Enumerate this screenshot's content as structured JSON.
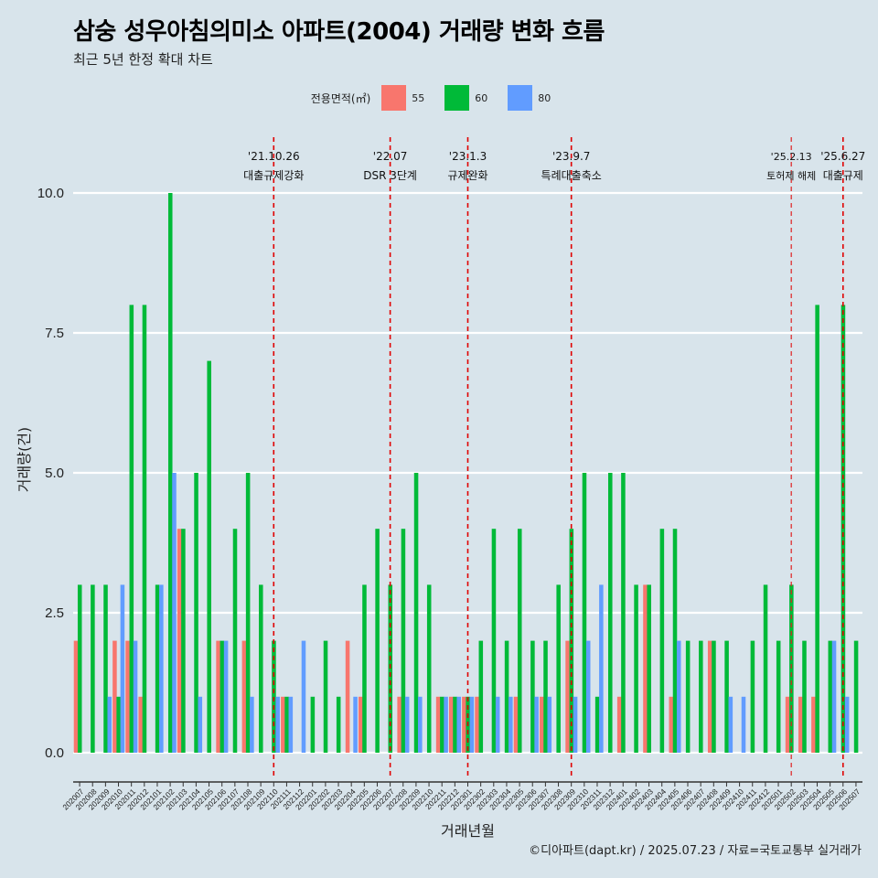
{
  "title": "삼숭 성우아침의미소 아파트(2004) 거래량 변화 흐름",
  "subtitle": "최근 5년 한정 확대 차트",
  "caption": "©디아파트(dapt.kr) / 2025.07.23 / 자료=국토교통부 실거래가",
  "chart_data": {
    "type": "bar",
    "xlabel": "거래년월",
    "ylabel": "거래량(건)",
    "ylim": [
      0,
      10
    ],
    "yticks": [
      "0.0",
      "2.5",
      "5.0",
      "7.5",
      "10.0"
    ],
    "grid": true,
    "legend": {
      "title": "전용면적(㎡)",
      "position": "top"
    },
    "categories": [
      "202007",
      "202008",
      "202009",
      "202010",
      "202011",
      "202012",
      "202101",
      "202102",
      "202103",
      "202104",
      "202105",
      "202106",
      "202107",
      "202108",
      "202109",
      "202110",
      "202111",
      "202112",
      "202201",
      "202202",
      "202203",
      "202204",
      "202205",
      "202206",
      "202207",
      "202208",
      "202209",
      "202210",
      "202211",
      "202212",
      "202301",
      "202302",
      "202303",
      "202304",
      "202305",
      "202306",
      "202307",
      "202308",
      "202309",
      "202310",
      "202311",
      "202312",
      "202401",
      "202402",
      "202403",
      "202404",
      "202405",
      "202406",
      "202407",
      "202408",
      "202409",
      "202410",
      "202411",
      "202412",
      "202501",
      "202502",
      "202503",
      "202504",
      "202505",
      "202506",
      "202507"
    ],
    "series": [
      {
        "name": "55",
        "color": "#f8766d",
        "values": [
          2,
          0,
          0,
          2,
          2,
          1,
          0,
          0,
          4,
          0,
          0,
          2,
          0,
          2,
          0,
          0,
          1,
          0,
          0,
          0,
          0,
          2,
          1,
          0,
          0,
          1,
          0,
          0,
          1,
          1,
          1,
          1,
          0,
          0,
          1,
          0,
          1,
          0,
          2,
          0,
          0,
          0,
          1,
          0,
          3,
          0,
          1,
          0,
          0,
          2,
          0,
          0,
          0,
          0,
          0,
          1,
          1,
          1,
          0,
          0,
          0
        ]
      },
      {
        "name": "60",
        "color": "#00ba38",
        "values": [
          3,
          3,
          3,
          1,
          8,
          8,
          3,
          10,
          4,
          5,
          7,
          2,
          4,
          5,
          3,
          2,
          1,
          0,
          1,
          2,
          1,
          0,
          3,
          4,
          3,
          4,
          5,
          3,
          1,
          1,
          1,
          2,
          4,
          2,
          4,
          2,
          2,
          3,
          4,
          5,
          1,
          5,
          5,
          3,
          3,
          4,
          4,
          2,
          2,
          2,
          2,
          0,
          2,
          3,
          2,
          3,
          2,
          8,
          2,
          8,
          2
        ]
      },
      {
        "name": "80",
        "color": "#619cff",
        "values": [
          0,
          0,
          1,
          3,
          2,
          0,
          3,
          5,
          0,
          1,
          0,
          2,
          0,
          1,
          0,
          1,
          1,
          2,
          0,
          0,
          0,
          1,
          0,
          0,
          0,
          1,
          1,
          0,
          1,
          1,
          1,
          0,
          1,
          1,
          0,
          1,
          1,
          0,
          1,
          2,
          3,
          0,
          0,
          0,
          0,
          0,
          2,
          0,
          0,
          0,
          1,
          1,
          0,
          0,
          0,
          0,
          0,
          0,
          2,
          1,
          0
        ]
      }
    ],
    "events": [
      {
        "date": "'21.10.26",
        "label": "대출규제강화",
        "at": "202110"
      },
      {
        "date": "'22.07",
        "label": "DSR 3단계",
        "at": "202207"
      },
      {
        "date": "'23.1.3",
        "label": "규제완화",
        "at": "202301"
      },
      {
        "date": "'23.9.7",
        "label": "특례대출축소",
        "at": "202309"
      },
      {
        "date": "'25.2.13",
        "label": "토허제 해제",
        "at": "202502"
      },
      {
        "date": "'25.6.27",
        "label": "대출규제",
        "at": "202506"
      }
    ]
  }
}
